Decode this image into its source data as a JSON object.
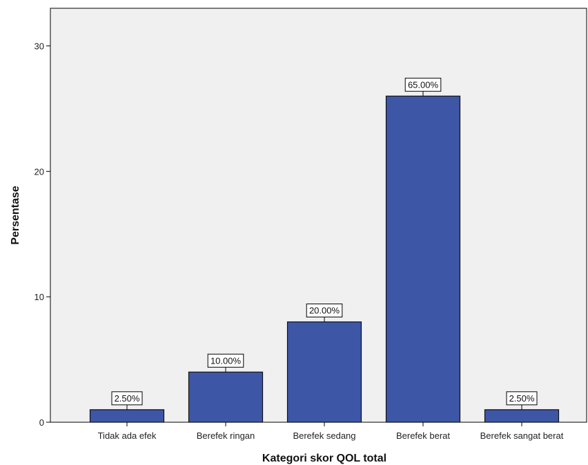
{
  "chart_data": {
    "type": "bar",
    "title": "",
    "xlabel": "Kategori skor QOL total",
    "ylabel": "Persentase",
    "categories": [
      "Tidak ada efek",
      "Berefek ringan",
      "Berefek sedang",
      "Berefek berat",
      "Berefek sangat berat"
    ],
    "values": [
      1,
      4,
      8,
      26,
      1
    ],
    "data_labels": [
      "2.50%",
      "10.00%",
      "20.00%",
      "65.00%",
      "2.50%"
    ],
    "yticks": [
      0,
      10,
      20,
      30
    ],
    "ylim": [
      0,
      33
    ],
    "grid": false,
    "legend": "none",
    "colors": {
      "bar": "#3d56a6",
      "bar_stroke": "#111111",
      "plot_bg": "#f0f0f0",
      "axis": "#000000"
    }
  }
}
